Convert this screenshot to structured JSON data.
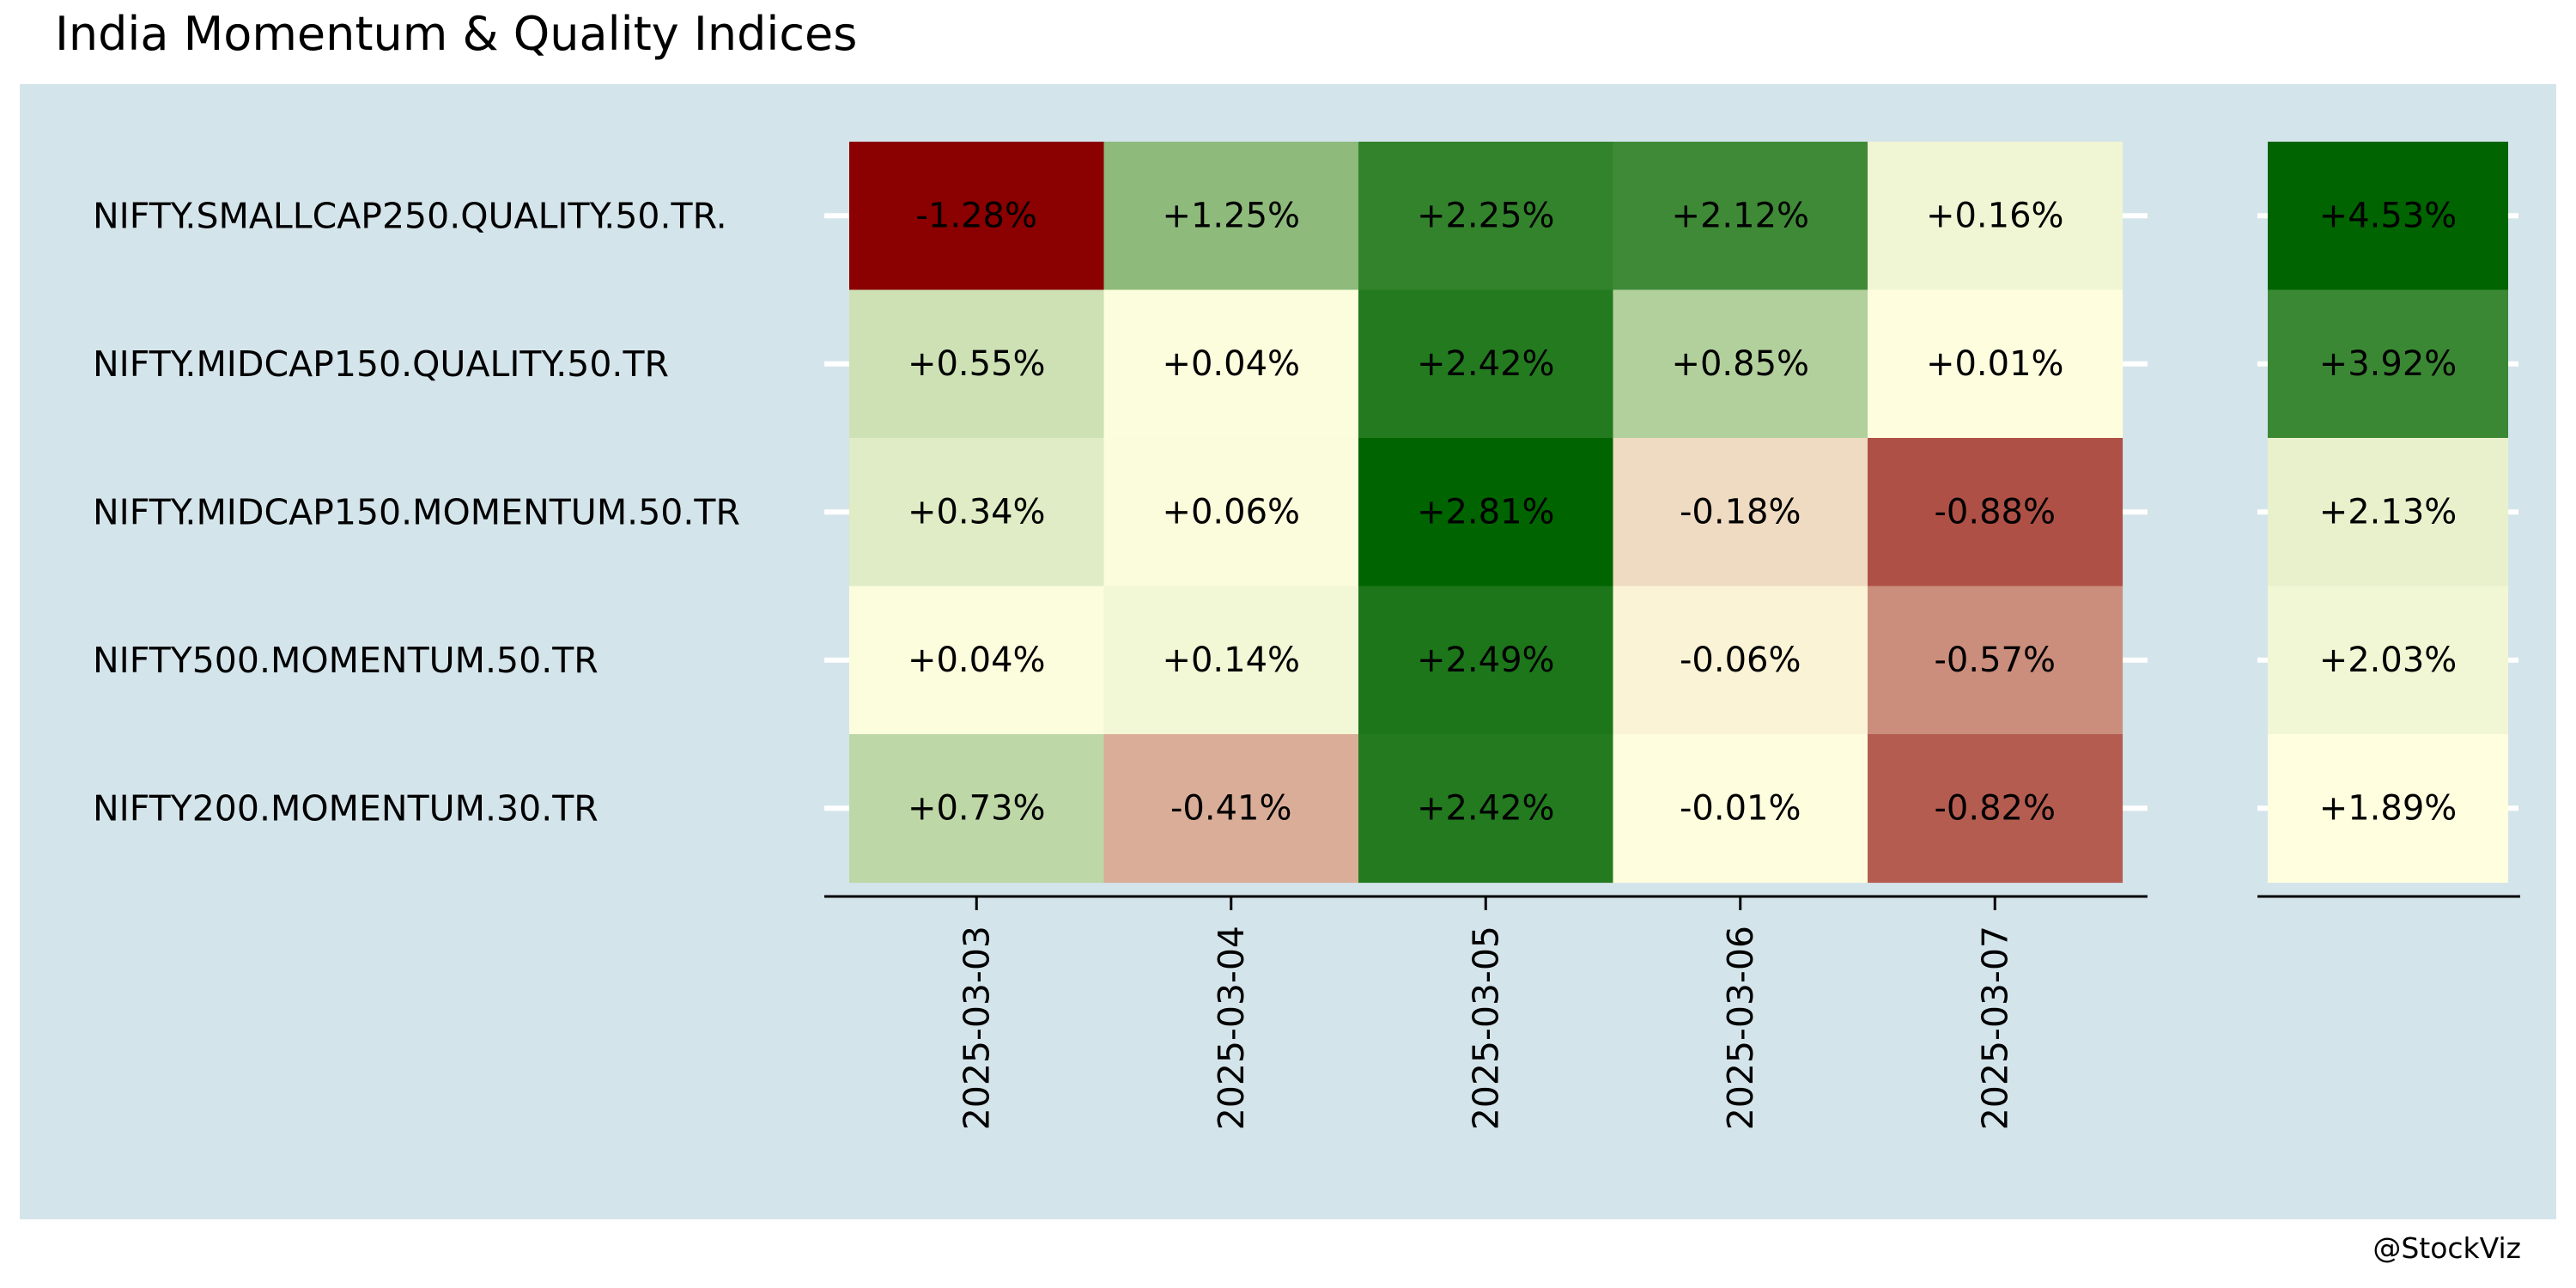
{
  "title": "India Momentum & Quality Indices",
  "caption": "@StockViz",
  "colors": {
    "panel_background": "#d4e4eb",
    "gridline": "#ffffff",
    "axis": "#000000",
    "text": "#000000",
    "scale_low": "#8b0000",
    "scale_mid": "#ffffe0",
    "scale_high": "#006400"
  },
  "chart_data": {
    "type": "heatmap",
    "title": "India Momentum & Quality Indices",
    "rows": [
      "NIFTY.SMALLCAP250.QUALITY.50.TR.",
      "NIFTY.MIDCAP150.QUALITY.50.TR",
      "NIFTY.MIDCAP150.MOMENTUM.50.TR",
      "NIFTY500.MOMENTUM.50.TR",
      "NIFTY200.MOMENTUM.30.TR"
    ],
    "columns": [
      "2025-03-03",
      "2025-03-04",
      "2025-03-05",
      "2025-03-06",
      "2025-03-07"
    ],
    "values": [
      [
        -1.28,
        1.25,
        2.25,
        2.12,
        0.16
      ],
      [
        0.55,
        0.04,
        2.42,
        0.85,
        0.01
      ],
      [
        0.34,
        0.06,
        2.81,
        -0.18,
        -0.88
      ],
      [
        0.04,
        0.14,
        2.49,
        -0.06,
        -0.57
      ],
      [
        0.73,
        -0.41,
        2.42,
        -0.01,
        -0.82
      ]
    ],
    "labels": [
      [
        "-1.28%",
        "+1.25%",
        "+2.25%",
        "+2.12%",
        "+0.16%"
      ],
      [
        "+0.55%",
        "+0.04%",
        "+2.42%",
        "+0.85%",
        "+0.01%"
      ],
      [
        "+0.34%",
        "+0.06%",
        "+2.81%",
        "-0.18%",
        "-0.88%"
      ],
      [
        "+0.04%",
        "+0.14%",
        "+2.49%",
        "-0.06%",
        "-0.57%"
      ],
      [
        "+0.73%",
        "-0.41%",
        "+2.42%",
        "-0.01%",
        "-0.82%"
      ]
    ],
    "totals": {
      "values": [
        4.53,
        3.92,
        2.13,
        2.03,
        1.89
      ],
      "labels": [
        "+4.53%",
        "+3.92%",
        "+2.13%",
        "+2.03%",
        "+1.89%"
      ]
    },
    "x_tick_rotation": "vertical",
    "legend": "none"
  }
}
